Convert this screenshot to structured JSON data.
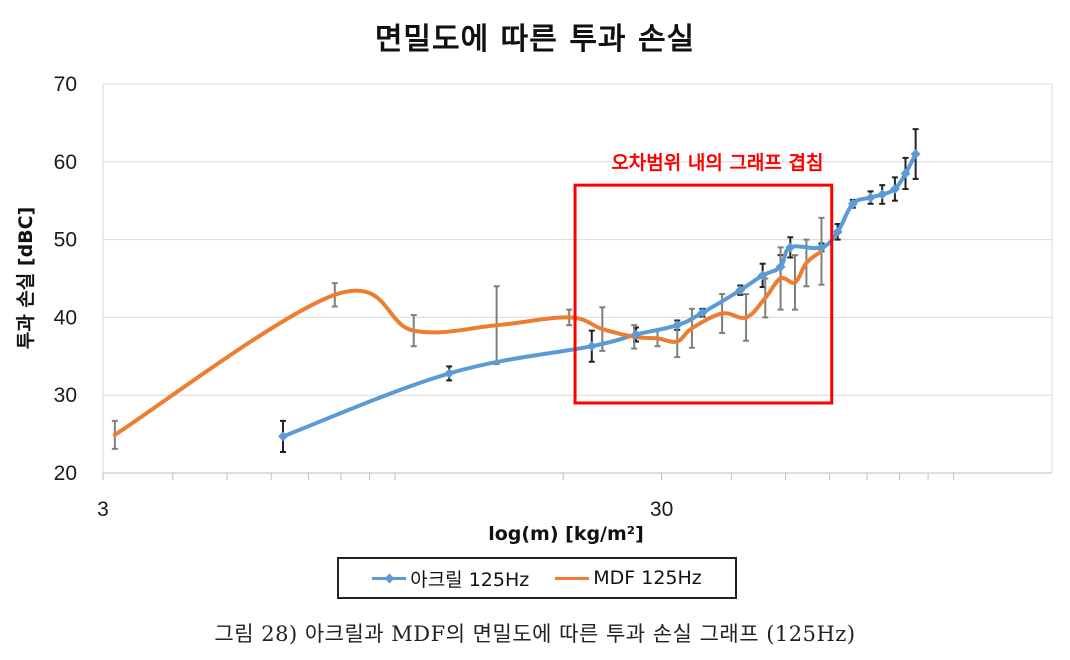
{
  "chart_data": {
    "type": "line",
    "title": "면밀도에 따른 투과 손실",
    "xlabel": "log(m) [kg/m²]",
    "ylabel": "투과 손실 [dBC]",
    "xscale": "log",
    "xlim": [
      3,
      150
    ],
    "ylim": [
      20,
      70
    ],
    "yticks": [
      20,
      30,
      40,
      50,
      60,
      70
    ],
    "xticks": [
      3,
      30
    ],
    "grid": "horizontal",
    "series": [
      {
        "name": "아크릴 125Hz",
        "color": "#5b9bd5",
        "marker": "diamond",
        "points": [
          {
            "x": 6.3,
            "y": 24.7,
            "err": 2.0
          },
          {
            "x": 12.5,
            "y": 32.8,
            "err": 0.9
          },
          {
            "x": 22.5,
            "y": 36.3,
            "err": 2.0
          },
          {
            "x": 27.0,
            "y": 37.8,
            "err": 0.9
          },
          {
            "x": 32.0,
            "y": 39.0,
            "err": 0.6
          },
          {
            "x": 35.5,
            "y": 40.6,
            "err": 0.5
          },
          {
            "x": 41.5,
            "y": 43.5,
            "err": 0.6
          },
          {
            "x": 45.5,
            "y": 45.4,
            "err": 1.5
          },
          {
            "x": 49.0,
            "y": 46.5,
            "err": 1.5
          },
          {
            "x": 51.0,
            "y": 49.0,
            "err": 1.3
          },
          {
            "x": 58.0,
            "y": 49.0,
            "err": 0.5
          },
          {
            "x": 62.0,
            "y": 51.0,
            "err": 1.0
          },
          {
            "x": 66.0,
            "y": 54.6,
            "err": 0.5
          },
          {
            "x": 71.0,
            "y": 55.4,
            "err": 0.8
          },
          {
            "x": 74.5,
            "y": 55.8,
            "err": 1.2
          },
          {
            "x": 78.5,
            "y": 56.5,
            "err": 1.5
          },
          {
            "x": 82.0,
            "y": 58.5,
            "err": 2.0
          },
          {
            "x": 85.5,
            "y": 61.0,
            "err": 3.2
          }
        ]
      },
      {
        "name": "MDF 125Hz",
        "color": "#ed7d31",
        "marker": "none",
        "points": [
          {
            "x": 3.15,
            "y": 24.9,
            "err": 1.8
          },
          {
            "x": 7.8,
            "y": 42.9,
            "err": 1.5
          },
          {
            "x": 10.8,
            "y": 38.3,
            "err": 2.0
          },
          {
            "x": 15.2,
            "y": 39.0,
            "err": 5.0
          },
          {
            "x": 20.5,
            "y": 40.0,
            "err": 1.0
          },
          {
            "x": 23.5,
            "y": 38.5,
            "err": 2.8
          },
          {
            "x": 26.8,
            "y": 37.5,
            "err": 1.5
          },
          {
            "x": 29.5,
            "y": 37.3,
            "err": 1.0
          },
          {
            "x": 32.0,
            "y": 36.9,
            "err": 2.0
          },
          {
            "x": 34.0,
            "y": 38.6,
            "err": 2.5
          },
          {
            "x": 38.5,
            "y": 40.5,
            "err": 2.5
          },
          {
            "x": 42.5,
            "y": 40.0,
            "err": 3.0
          },
          {
            "x": 46.0,
            "y": 42.5,
            "err": 2.5
          },
          {
            "x": 49.0,
            "y": 45.0,
            "err": 4.0
          },
          {
            "x": 52.0,
            "y": 44.5,
            "err": 3.5
          },
          {
            "x": 54.5,
            "y": 47.0,
            "err": 3.0
          },
          {
            "x": 58.0,
            "y": 48.5,
            "err": 4.3
          }
        ]
      }
    ],
    "annotation": {
      "text": "오차범위 내의 그래프 겹침",
      "color": "#ff0000",
      "x_range": [
        21.0,
        60.5
      ],
      "y_range": [
        29.0,
        57.0
      ]
    },
    "legend": {
      "position": "bottom-center"
    }
  },
  "caption": "그림 28) 아크릴과 MDF의 면밀도에 따른 투과 손실 그래프 (125Hz)"
}
